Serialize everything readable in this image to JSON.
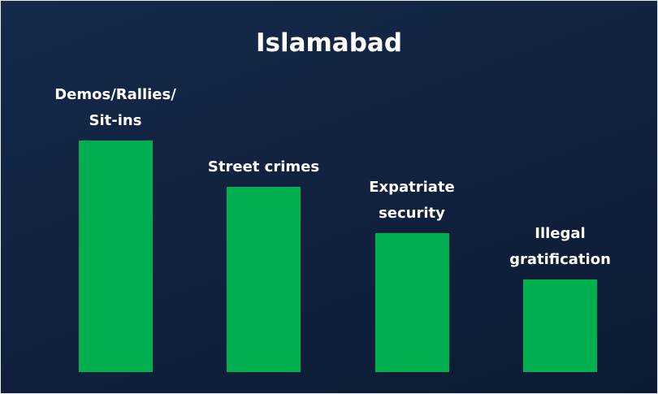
{
  "chart_data": {
    "type": "bar",
    "title": "Islamabad",
    "categories": [
      "Demos/Rallies/Sit-ins",
      "Street crimes",
      "Expatriate security",
      "Illegal gratification"
    ],
    "values": [
      5,
      4,
      3,
      2
    ],
    "color": "#00b050",
    "ylim": [
      0,
      5
    ]
  }
}
